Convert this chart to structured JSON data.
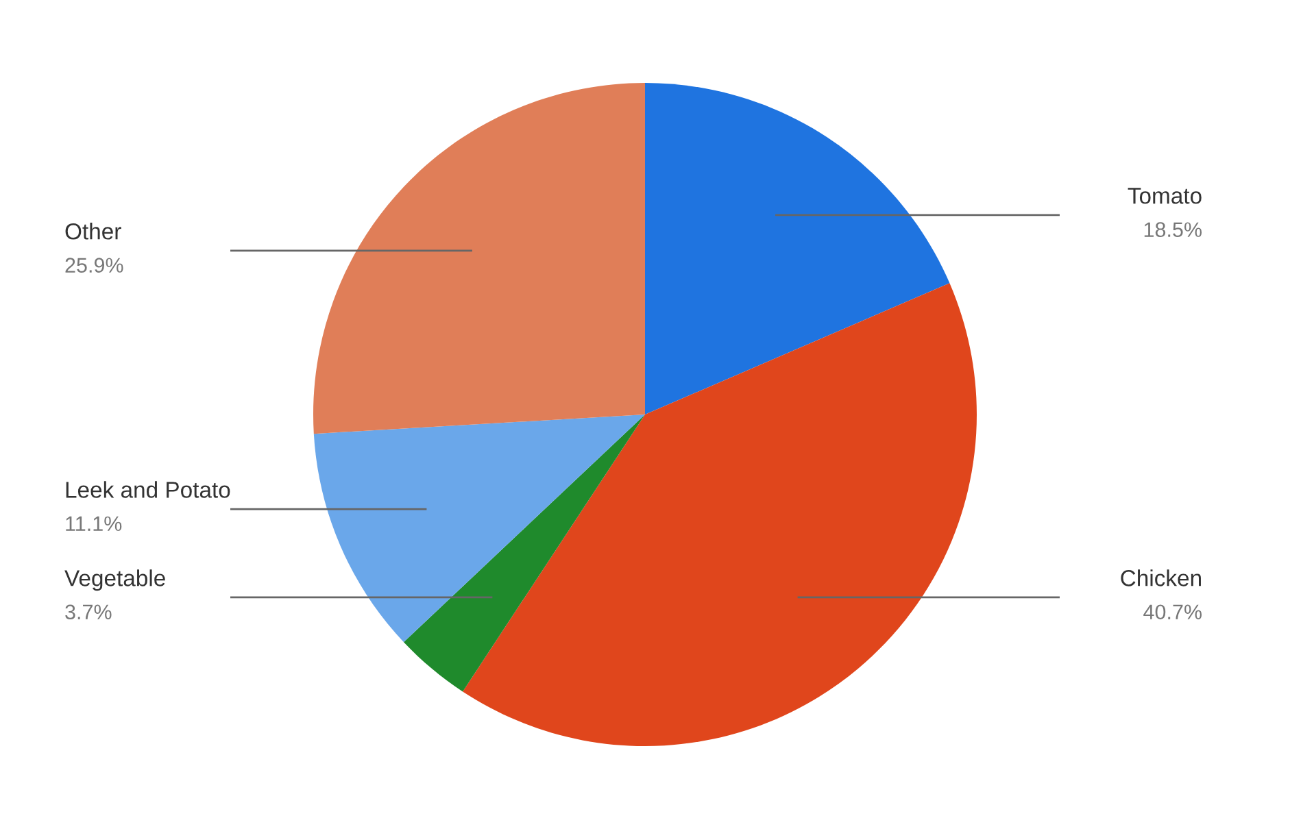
{
  "chart_data": {
    "type": "pie",
    "categories": [
      "Tomato",
      "Chicken",
      "Vegetable",
      "Leek and Potato",
      "Other"
    ],
    "values": [
      18.5,
      40.7,
      3.7,
      11.1,
      25.9
    ],
    "colors": [
      "#1f74e0",
      "#e0461c",
      "#1f8a2c",
      "#6aa7ea",
      "#e07e58"
    ],
    "value_labels": [
      "18.5%",
      "40.7%",
      "3.7%",
      "11.1%",
      "25.9%"
    ]
  }
}
